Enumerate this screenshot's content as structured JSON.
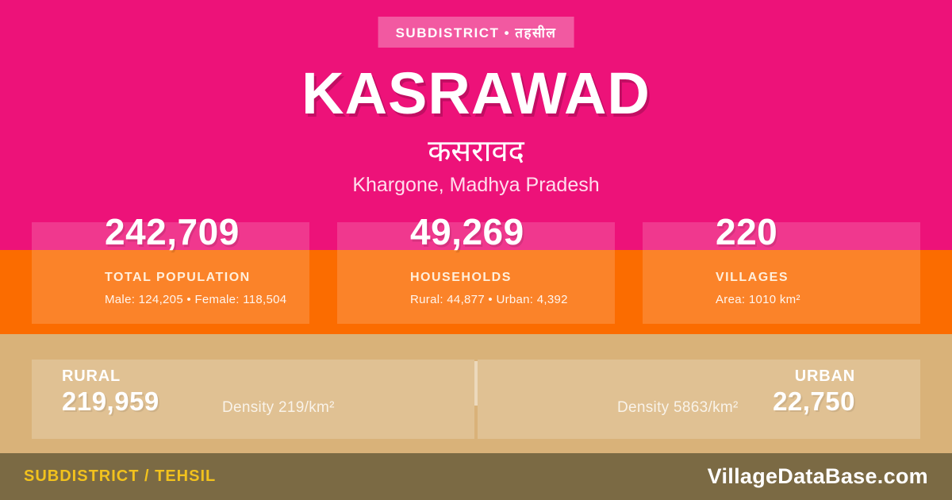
{
  "badge": {
    "label": "SUBDISTRICT • तहसील"
  },
  "header": {
    "title": "KASRAWAD",
    "title_hindi": "कसरावद",
    "location": "Khargone, Madhya Pradesh"
  },
  "stats": [
    {
      "value": "242,709",
      "label": "TOTAL POPULATION",
      "detail": "Male: 124,205 • Female: 118,504"
    },
    {
      "value": "49,269",
      "label": "HOUSEHOLDS",
      "detail": "Rural: 44,877 • Urban: 4,392"
    },
    {
      "value": "220",
      "label": "VILLAGES",
      "detail": "Area: 1010 km²"
    }
  ],
  "rural_urban": {
    "rural": {
      "label": "RURAL",
      "value": "219,959",
      "density": "Density 219/km²"
    },
    "urban": {
      "label": "URBAN",
      "value": "22,750",
      "density": "Density 5863/km²"
    }
  },
  "footer": {
    "type_label": "SUBDISTRICT / TEHSIL",
    "site": "VillageDataBase.com"
  },
  "colors": {
    "pink": "#ED1279",
    "orange": "#FB6C00",
    "tan": "#D9B279",
    "footer_bg": "#7B6A44",
    "accent_yellow": "#F2C21D",
    "light_pink_text": "#FFDEED"
  }
}
